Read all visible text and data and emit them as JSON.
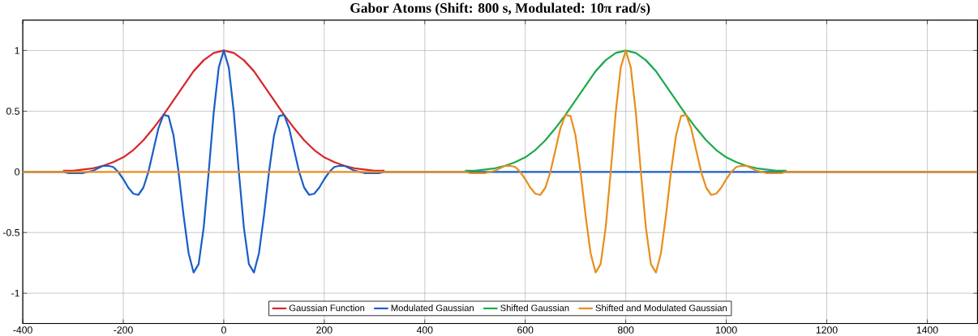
{
  "chart_data": {
    "type": "line",
    "title": "Gabor Atoms (Shift: 800 s, Modulated: 10π rad/s)",
    "xlim": [
      -400,
      1500
    ],
    "ylim": [
      -1.25,
      1.25
    ],
    "xticks": [
      -400,
      -200,
      0,
      200,
      400,
      600,
      800,
      1000,
      1200,
      1400
    ],
    "yticks": [
      -1,
      -0.5,
      0,
      0.5,
      1
    ],
    "grid": true,
    "legend": "bottom",
    "series": [
      {
        "name": "Gaussian Function",
        "color": "#d9262b",
        "x": [
          -320,
          -300,
          -280,
          -260,
          -240,
          -220,
          -200,
          -180,
          -160,
          -140,
          -120,
          -100,
          -80,
          -60,
          -40,
          -20,
          0,
          20,
          40,
          60,
          80,
          100,
          120,
          140,
          160,
          180,
          200,
          220,
          240,
          260,
          280,
          300,
          320
        ],
        "values": [
          0.01,
          0.01,
          0.02,
          0.03,
          0.05,
          0.08,
          0.12,
          0.18,
          0.26,
          0.36,
          0.47,
          0.59,
          0.71,
          0.83,
          0.92,
          0.98,
          1,
          0.98,
          0.92,
          0.83,
          0.71,
          0.59,
          0.47,
          0.36,
          0.26,
          0.18,
          0.12,
          0.08,
          0.05,
          0.03,
          0.02,
          0.01,
          0.01
        ]
      },
      {
        "name": "Modulated Gaussian",
        "color": "#1a5fc8",
        "x": [
          -400,
          -320,
          -310,
          -300,
          -290,
          -280,
          -270,
          -260,
          -250,
          -240,
          -230,
          -220,
          -210,
          -200,
          -190,
          -180,
          -170,
          -160,
          -150,
          -140,
          -130,
          -120,
          -110,
          -100,
          -90,
          -80,
          -70,
          -60,
          -50,
          -40,
          -30,
          -20,
          -10,
          0,
          10,
          20,
          30,
          40,
          50,
          60,
          70,
          80,
          90,
          100,
          110,
          120,
          130,
          140,
          150,
          160,
          170,
          180,
          190,
          200,
          210,
          220,
          230,
          240,
          250,
          260,
          270,
          280,
          290,
          300,
          310,
          320,
          1500
        ],
        "values": [
          0,
          0,
          -0.01,
          -0.01,
          -0.01,
          -0.01,
          0,
          0.01,
          0.03,
          0.05,
          0.05,
          0.04,
          0,
          -0.06,
          -0.13,
          -0.18,
          -0.19,
          -0.13,
          0,
          0.18,
          0.36,
          0.47,
          0.46,
          0.3,
          0,
          -0.36,
          -0.67,
          -0.83,
          -0.76,
          -0.46,
          0,
          0.49,
          0.86,
          1,
          0.86,
          0.49,
          0,
          -0.46,
          -0.76,
          -0.83,
          -0.67,
          -0.36,
          0,
          0.3,
          0.46,
          0.47,
          0.36,
          0.18,
          0,
          -0.13,
          -0.19,
          -0.18,
          -0.13,
          -0.06,
          0,
          0.04,
          0.05,
          0.05,
          0.03,
          0.01,
          0,
          -0.01,
          -0.01,
          -0.01,
          -0.01,
          0,
          0
        ]
      },
      {
        "name": "Shifted Gaussian",
        "color": "#1faa4b",
        "x": [
          480,
          500,
          520,
          540,
          560,
          580,
          600,
          620,
          640,
          660,
          680,
          700,
          720,
          740,
          760,
          780,
          800,
          820,
          840,
          860,
          880,
          900,
          920,
          940,
          960,
          980,
          1000,
          1020,
          1040,
          1060,
          1080,
          1100,
          1120
        ],
        "values": [
          0.01,
          0.01,
          0.02,
          0.03,
          0.05,
          0.08,
          0.12,
          0.18,
          0.26,
          0.36,
          0.47,
          0.59,
          0.71,
          0.83,
          0.92,
          0.98,
          1,
          0.98,
          0.92,
          0.83,
          0.71,
          0.59,
          0.47,
          0.36,
          0.26,
          0.18,
          0.12,
          0.08,
          0.05,
          0.03,
          0.02,
          0.01,
          0.01
        ]
      },
      {
        "name": "Shifted and Modulated Gaussian",
        "color": "#e88f1e",
        "x": [
          -400,
          480,
          490,
          500,
          510,
          520,
          530,
          540,
          550,
          560,
          570,
          580,
          590,
          600,
          610,
          620,
          630,
          640,
          650,
          660,
          670,
          680,
          690,
          700,
          710,
          720,
          730,
          740,
          750,
          760,
          770,
          780,
          790,
          800,
          810,
          820,
          830,
          840,
          850,
          860,
          870,
          880,
          890,
          900,
          910,
          920,
          930,
          940,
          950,
          960,
          970,
          980,
          990,
          1000,
          1010,
          1020,
          1030,
          1040,
          1050,
          1060,
          1070,
          1080,
          1090,
          1100,
          1110,
          1120,
          1500
        ],
        "values": [
          0,
          0,
          -0.01,
          -0.01,
          -0.01,
          -0.01,
          0,
          0.01,
          0.03,
          0.05,
          0.05,
          0.04,
          0,
          -0.06,
          -0.13,
          -0.18,
          -0.19,
          -0.13,
          0,
          0.18,
          0.36,
          0.47,
          0.46,
          0.3,
          0,
          -0.36,
          -0.67,
          -0.83,
          -0.76,
          -0.46,
          0,
          0.49,
          0.86,
          1,
          0.86,
          0.49,
          0,
          -0.46,
          -0.76,
          -0.83,
          -0.67,
          -0.36,
          0,
          0.3,
          0.46,
          0.47,
          0.36,
          0.18,
          0,
          -0.13,
          -0.19,
          -0.18,
          -0.13,
          -0.06,
          0,
          0.04,
          0.05,
          0.05,
          0.03,
          0.01,
          0,
          -0.01,
          -0.01,
          -0.01,
          -0.01,
          0,
          0
        ]
      }
    ]
  }
}
